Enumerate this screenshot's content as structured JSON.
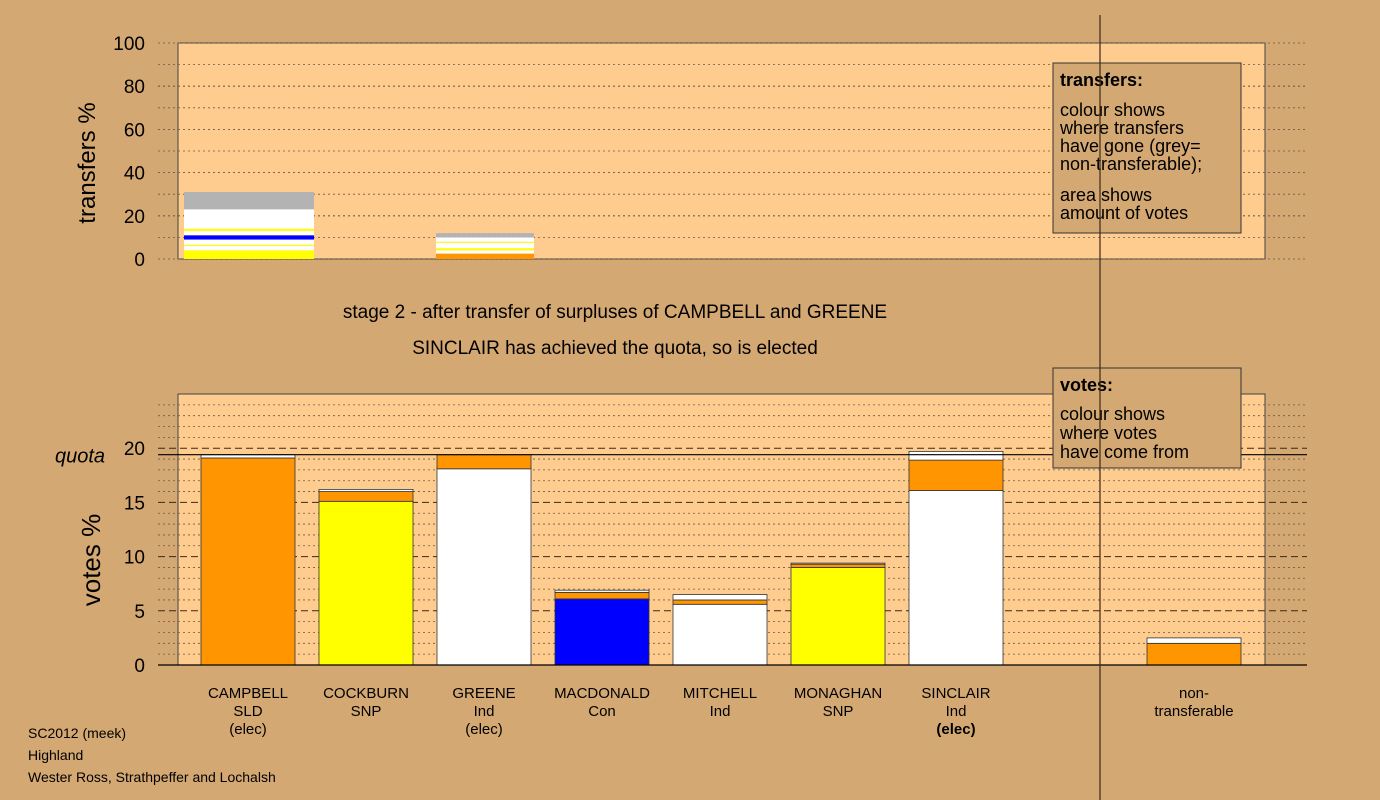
{
  "stage_title": "stage 2 - after transfer of surpluses of CAMPBELL and GREENE",
  "stage_subtitle": "SINCLAIR has achieved the quota, so is elected",
  "footer": [
    "SC2012 (meek)",
    "Highland",
    "Wester Ross, Strathpeffer and Lochalsh"
  ],
  "transfers_legend": {
    "title": "transfers:",
    "lines": [
      "colour shows",
      "where transfers",
      "have gone (grey=",
      "non-transferable);",
      "area shows",
      "amount of votes"
    ]
  },
  "votes_legend": {
    "title": "votes:",
    "lines": [
      "colour shows",
      "where votes",
      "have come from"
    ]
  },
  "colors": {
    "background": "#d4a872",
    "plot": "#ffcc8f",
    "SLD": "#ff9500",
    "SNP": "#ffff00",
    "Ind": "#ffffff",
    "Con": "#0000ff",
    "nontransferable": "#b3b3b3"
  },
  "chart_data": [
    {
      "type": "bar",
      "ylabel": "transfers %",
      "ylim": [
        0,
        100
      ],
      "yticks": [
        0,
        20,
        40,
        60,
        80,
        100
      ],
      "grid": true,
      "stacked": true,
      "bars": [
        {
          "category": "CAMPBELL",
          "segments": [
            {
              "color": "SNP",
              "value": 4
            },
            {
              "color": "Ind",
              "value": 2
            },
            {
              "color": "SNP",
              "value": 0.6
            },
            {
              "color": "Ind",
              "value": 2.4
            },
            {
              "color": "Con",
              "value": 2
            },
            {
              "color": "Ind",
              "value": 2
            },
            {
              "color": "SNP",
              "value": 1
            },
            {
              "color": "Ind",
              "value": 9
            },
            {
              "color": "nontransferable",
              "value": 8
            }
          ]
        },
        {
          "category": "GREENE",
          "segments": [
            {
              "color": "SLD",
              "value": 2.5
            },
            {
              "color": "Ind",
              "value": 1.5
            },
            {
              "color": "SNP",
              "value": 1
            },
            {
              "color": "Ind",
              "value": 2.5
            },
            {
              "color": "SNP",
              "value": 0.5
            },
            {
              "color": "Ind",
              "value": 2
            },
            {
              "color": "nontransferable",
              "value": 2
            }
          ]
        }
      ]
    },
    {
      "type": "bar",
      "ylabel": "votes %",
      "ylim": [
        0,
        25
      ],
      "yticks": [
        0,
        5,
        10,
        15,
        20
      ],
      "quota": 19.4,
      "quota_label": "quota",
      "stacked": true,
      "categories": [
        {
          "name": "CAMPBELL",
          "party": "SLD",
          "status": "(elec)",
          "segments": [
            {
              "color": "SLD",
              "value": 19.1
            },
            {
              "color": "Ind",
              "value": 0.3
            }
          ]
        },
        {
          "name": "COCKBURN",
          "party": "SNP",
          "status": "",
          "segments": [
            {
              "color": "SNP",
              "value": 15.1
            },
            {
              "color": "SLD",
              "value": 0.9
            },
            {
              "color": "Ind",
              "value": 0.2
            }
          ]
        },
        {
          "name": "GREENE",
          "party": "Ind",
          "status": "(elec)",
          "segments": [
            {
              "color": "Ind",
              "value": 18.1
            },
            {
              "color": "SLD",
              "value": 1.3
            }
          ]
        },
        {
          "name": "MACDONALD",
          "party": "Con",
          "status": "",
          "segments": [
            {
              "color": "Con",
              "value": 6.1
            },
            {
              "color": "SLD",
              "value": 0.6
            },
            {
              "color": "Ind",
              "value": 0.2
            }
          ]
        },
        {
          "name": "MITCHELL",
          "party": "Ind",
          "status": "",
          "segments": [
            {
              "color": "Ind",
              "value": 5.6
            },
            {
              "color": "SLD",
              "value": 0.4
            },
            {
              "color": "Ind",
              "value": 0.5
            }
          ]
        },
        {
          "name": "MONAGHAN",
          "party": "SNP",
          "status": "",
          "segments": [
            {
              "color": "SNP",
              "value": 9.0
            },
            {
              "color": "SLD",
              "value": 0.3
            },
            {
              "color": "Ind",
              "value": 0.1
            }
          ]
        },
        {
          "name": "SINCLAIR",
          "party": "Ind",
          "status": "(elec)",
          "segments": [
            {
              "color": "Ind",
              "value": 16.1
            },
            {
              "color": "SLD",
              "value": 2.8
            },
            {
              "color": "Ind",
              "value": 0.8
            }
          ]
        },
        {
          "name": "non-",
          "party": "transferable",
          "status": "",
          "segments": [
            {
              "color": "SLD",
              "value": 2.0
            },
            {
              "color": "Ind",
              "value": 0.5
            }
          ]
        }
      ]
    }
  ]
}
